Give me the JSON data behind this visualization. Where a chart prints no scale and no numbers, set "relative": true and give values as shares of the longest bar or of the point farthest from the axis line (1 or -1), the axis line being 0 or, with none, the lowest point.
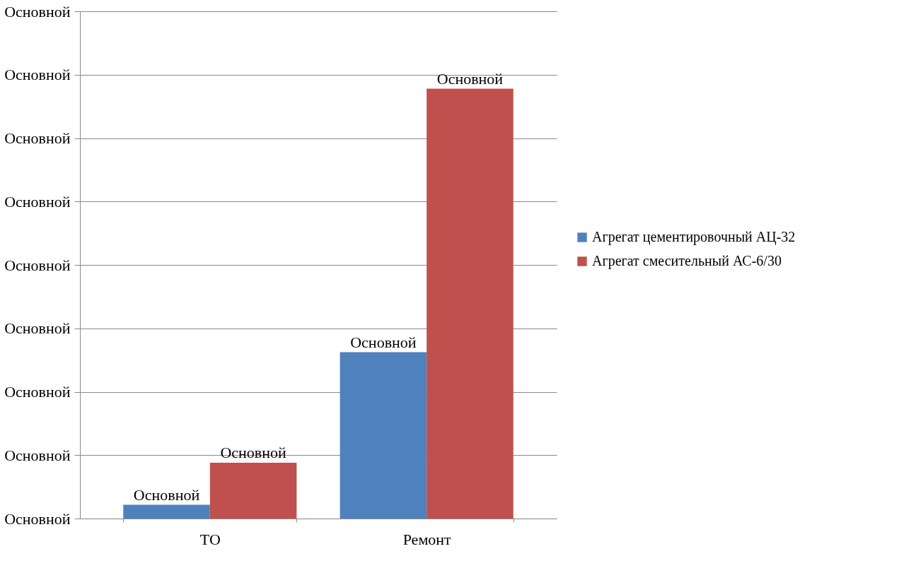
{
  "chart_data": {
    "type": "bar",
    "relative": true,
    "categories": [
      "ТО",
      "Ремонт"
    ],
    "series": [
      {
        "name": "Агрегат цементировочный АЦ-32",
        "color": "#4f81bd",
        "values": [
          0.032,
          0.387
        ]
      },
      {
        "name": "Агрегат смесительный АС-6/30",
        "color": "#c0504d",
        "values": [
          0.13,
          1
        ]
      }
    ],
    "annotations": [
      "Основной",
      "Основной",
      "Основной",
      "Основной",
      "Основной",
      "Основной",
      "Основной",
      "Основной",
      "Основной",
      {
        "text": "Основной",
        "x": "ТО",
        "y": 0.032
      },
      {
        "text": "Основной",
        "x": "ТО",
        "y": 0.13
      },
      {
        "text": "Основной",
        "x": "Ремонт",
        "y": 0.387
      },
      {
        "text": "Основной",
        "x": "Ремонт",
        "y": 1
      }
    ],
    "grid": "y",
    "legend": "right"
  }
}
